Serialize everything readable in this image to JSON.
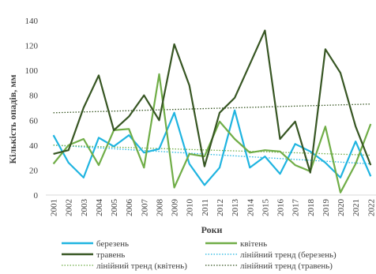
{
  "chart_data": {
    "type": "line",
    "title": "",
    "xlabel": "Роки",
    "ylabel": "Кількість опадів, мм",
    "ylim": [
      0,
      140
    ],
    "yticks": [
      0,
      20,
      40,
      60,
      80,
      100,
      120,
      140
    ],
    "grid": false,
    "legend_position": "bottom",
    "x": [
      "2001",
      "2002",
      "2003",
      "2004",
      "2005",
      "2006",
      "2007",
      "2008",
      "2009",
      "2010",
      "2011",
      "2012",
      "2013",
      "2014",
      "2015",
      "2016",
      "2017",
      "2018",
      "2019",
      "2020",
      "2021",
      "2022"
    ],
    "series": [
      {
        "name": "березень",
        "color": "#1fb4e0",
        "values": [
          48,
          26,
          14,
          46,
          39,
          48,
          34,
          37,
          66,
          25,
          8,
          22,
          68,
          22,
          31,
          17,
          41,
          35,
          26,
          14,
          43,
          15
        ]
      },
      {
        "name": "квітень",
        "color": "#70ad47",
        "values": [
          25,
          40,
          45,
          24,
          52,
          53,
          22,
          97,
          6,
          33,
          31,
          59,
          45,
          34,
          36,
          35,
          24,
          19,
          55,
          2,
          25,
          57
        ]
      },
      {
        "name": "травень",
        "color": "#375623",
        "values": [
          33,
          36,
          70,
          96,
          52,
          63,
          80,
          60,
          121,
          88,
          23,
          66,
          78,
          105,
          132,
          45,
          59,
          18,
          117,
          98,
          55,
          24
        ]
      }
    ],
    "trends": [
      {
        "name": "лінійний тренд (березень)",
        "color": "#1fb4e0",
        "start": 40,
        "end": 25
      },
      {
        "name": "лінійний тренд (квітень)",
        "color": "#70ad47",
        "start": 40,
        "end": 32
      },
      {
        "name": "лінійний тренд (травень)",
        "color": "#375623",
        "start": 66,
        "end": 73
      }
    ]
  }
}
